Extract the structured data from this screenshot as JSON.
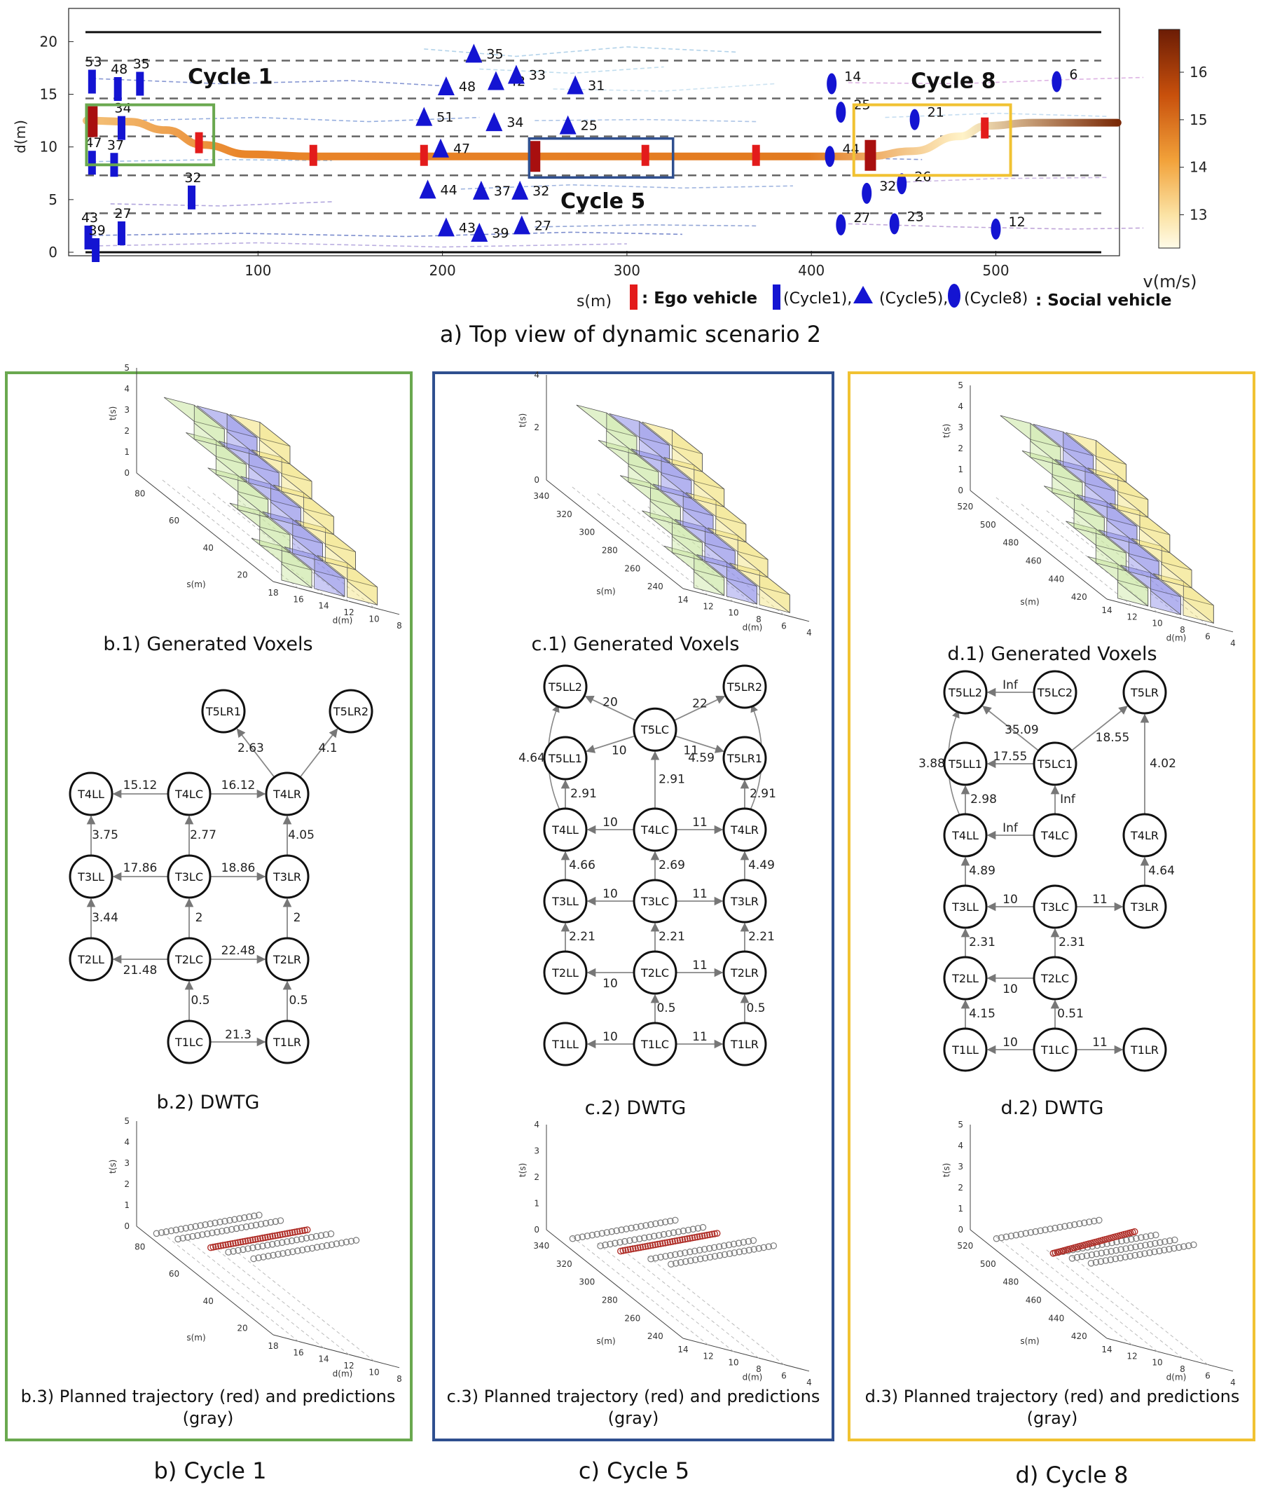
{
  "colors": {
    "cycle1": "#6aa84f",
    "cycle5": "#2f4f8f",
    "cycle8": "#f1c232",
    "ego": "#e31b1b",
    "ego_dark": "#a80f0f",
    "social": "#1414d2",
    "trajectory": "#e07a1f",
    "planned": "#b0302a",
    "prediction": "#7a7a7a",
    "voxel_yellow": "#f2e27a",
    "voxel_blue": "#8a8ae6",
    "voxel_green": "#c9e6a0"
  },
  "top_view": {
    "caption": "a)  Top view of dynamic scenario 2",
    "xlabel": "s(m)",
    "ylabel": "d(m)",
    "x_ticks": [
      "100",
      "200",
      "300",
      "400",
      "500"
    ],
    "y_ticks": [
      "0",
      "5",
      "10",
      "15",
      "20"
    ],
    "colorbar_label": "v(m/s)",
    "colorbar_ticks": [
      "13",
      "14",
      "15",
      "16"
    ],
    "cycle_labels": [
      "Cycle 1",
      "Cycle 5",
      "Cycle 8"
    ],
    "legend_ego": ": Ego vehicle",
    "legend_cycle1": "(Cycle1),",
    "legend_cycle5": "(Cycle5),",
    "legend_cycle8": "(Cycle8)",
    "legend_social": ": Social vehicle",
    "cycle1_ids": [
      {
        "id": "53",
        "s": 10,
        "d": 16.2
      },
      {
        "id": "48",
        "s": 24,
        "d": 15.5
      },
      {
        "id": "35",
        "s": 36,
        "d": 16.0
      },
      {
        "id": "34",
        "s": 26,
        "d": 11.8
      },
      {
        "id": "47",
        "s": 10,
        "d": 8.5
      },
      {
        "id": "37",
        "s": 22,
        "d": 8.3
      },
      {
        "id": "32",
        "s": 64,
        "d": 5.2
      },
      {
        "id": "27",
        "s": 26,
        "d": 1.8
      },
      {
        "id": "43",
        "s": 8,
        "d": 1.4
      },
      {
        "id": "39",
        "s": 12,
        "d": 0.2
      }
    ],
    "cycle5_ids": [
      {
        "id": "35",
        "s": 217,
        "d": 18.8
      },
      {
        "id": "48",
        "s": 202,
        "d": 15.7
      },
      {
        "id": "42",
        "s": 229,
        "d": 16.2
      },
      {
        "id": "33",
        "s": 240,
        "d": 16.8
      },
      {
        "id": "31",
        "s": 272,
        "d": 15.8
      },
      {
        "id": "51",
        "s": 190,
        "d": 12.8
      },
      {
        "id": "34",
        "s": 228,
        "d": 12.3
      },
      {
        "id": "25",
        "s": 268,
        "d": 12.0
      },
      {
        "id": "47",
        "s": 199,
        "d": 9.8
      },
      {
        "id": "44",
        "s": 192,
        "d": 5.9
      },
      {
        "id": "37",
        "s": 221,
        "d": 5.8
      },
      {
        "id": "32",
        "s": 242,
        "d": 5.8
      },
      {
        "id": "43",
        "s": 202,
        "d": 2.3
      },
      {
        "id": "39",
        "s": 220,
        "d": 1.8
      },
      {
        "id": "27",
        "s": 243,
        "d": 2.5
      }
    ],
    "cycle8_ids": [
      {
        "id": "14",
        "s": 411,
        "d": 16.0
      },
      {
        "id": "6",
        "s": 533,
        "d": 16.2
      },
      {
        "id": "25",
        "s": 416,
        "d": 13.3
      },
      {
        "id": "21",
        "s": 456,
        "d": 12.6
      },
      {
        "id": "44",
        "s": 410,
        "d": 9.1
      },
      {
        "id": "26",
        "s": 449,
        "d": 6.5
      },
      {
        "id": "32",
        "s": 430,
        "d": 5.6
      },
      {
        "id": "27",
        "s": 416,
        "d": 2.6
      },
      {
        "id": "23",
        "s": 445,
        "d": 2.7
      },
      {
        "id": "12",
        "s": 500,
        "d": 2.2
      }
    ]
  },
  "voxels": {
    "zlabel": "t(s)",
    "ylabel_s": "s(m)",
    "xlabel_d": "d(m)",
    "b": {
      "caption": "b.1)  Generated Voxels",
      "t_ticks": [
        "0",
        "1",
        "2",
        "3",
        "4",
        "5"
      ],
      "s_ticks": [
        "80",
        "60",
        "40",
        "20"
      ],
      "d_ticks": [
        "18",
        "16",
        "14",
        "12",
        "10",
        "8"
      ]
    },
    "c": {
      "caption": "c.1)  Generated Voxels",
      "t_ticks": [
        "0",
        "2",
        "4"
      ],
      "s_ticks": [
        "340",
        "320",
        "300",
        "280",
        "260",
        "240"
      ],
      "d_ticks": [
        "14",
        "12",
        "10",
        "8",
        "6",
        "4"
      ]
    },
    "d": {
      "caption": "d.1)  Generated Voxels",
      "t_ticks": [
        "0",
        "1",
        "2",
        "3",
        "4",
        "5"
      ],
      "s_ticks": [
        "520",
        "500",
        "480",
        "460",
        "440",
        "420"
      ],
      "d_ticks": [
        "14",
        "12",
        "10",
        "8",
        "6",
        "4"
      ]
    }
  },
  "dwtg": {
    "b": {
      "caption": "b.2)  DWTG",
      "nodes": [
        {
          "id": "T5LR1",
          "c": 1.35,
          "r": 0
        },
        {
          "id": "T5LR2",
          "c": 2.65,
          "r": 0
        },
        {
          "id": "T4LL",
          "c": 0,
          "r": 1
        },
        {
          "id": "T4LC",
          "c": 1,
          "r": 1
        },
        {
          "id": "T4LR",
          "c": 2,
          "r": 1
        },
        {
          "id": "T3LL",
          "c": 0,
          "r": 2
        },
        {
          "id": "T3LC",
          "c": 1,
          "r": 2
        },
        {
          "id": "T3LR",
          "c": 2,
          "r": 2
        },
        {
          "id": "T2LL",
          "c": 0,
          "r": 3
        },
        {
          "id": "T2LC",
          "c": 1,
          "r": 3
        },
        {
          "id": "T2LR",
          "c": 2,
          "r": 3
        },
        {
          "id": "T1LC",
          "c": 1,
          "r": 4
        },
        {
          "id": "T1LR",
          "c": 2,
          "r": 4
        }
      ],
      "edges": [
        {
          "from": "T4LC",
          "to": "T4LL",
          "w": "15.12",
          "lx": 0.5,
          "ly": -12
        },
        {
          "from": "T4LC",
          "to": "T4LR",
          "w": "16.12",
          "lx": 0.5,
          "ly": -12
        },
        {
          "from": "T4LR",
          "to": "T5LR1",
          "w": "2.63",
          "lx": 0.55,
          "ly": 0,
          "ldx": -2
        },
        {
          "from": "T4LR",
          "to": "T5LR2",
          "w": "4.1",
          "lx": 0.55,
          "ly": 0,
          "ldx": 8
        },
        {
          "from": "T3LL",
          "to": "T4LL",
          "w": "3.75",
          "lx": 0.5,
          "ly": 0,
          "ldx": 20
        },
        {
          "from": "T3LC",
          "to": "T4LC",
          "w": "2.77",
          "lx": 0.5,
          "ly": 0,
          "ldx": 20
        },
        {
          "from": "T3LR",
          "to": "T4LR",
          "w": "4.05",
          "lx": 0.5,
          "ly": 0,
          "ldx": 20
        },
        {
          "from": "T3LC",
          "to": "T3LL",
          "w": "17.86",
          "lx": 0.5,
          "ly": -12
        },
        {
          "from": "T3LC",
          "to": "T3LR",
          "w": "18.86",
          "lx": 0.5,
          "ly": -12
        },
        {
          "from": "T2LL",
          "to": "T3LL",
          "w": "3.44",
          "lx": 0.5,
          "ly": 0,
          "ldx": 20
        },
        {
          "from": "T2LC",
          "to": "T3LC",
          "w": "2",
          "lx": 0.5,
          "ly": 0,
          "ldx": 14
        },
        {
          "from": "T2LR",
          "to": "T3LR",
          "w": "2",
          "lx": 0.5,
          "ly": 0,
          "ldx": 14
        },
        {
          "from": "T2LC",
          "to": "T2LL",
          "w": "21.48",
          "lx": 0.5,
          "ly": 16
        },
        {
          "from": "T2LC",
          "to": "T2LR",
          "w": "22.48",
          "lx": 0.5,
          "ly": -12
        },
        {
          "from": "T1LC",
          "to": "T2LC",
          "w": "0.5",
          "lx": 0.5,
          "ly": 0,
          "ldx": 16
        },
        {
          "from": "T1LR",
          "to": "T2LR",
          "w": "0.5",
          "lx": 0.5,
          "ly": 0,
          "ldx": 16
        },
        {
          "from": "T1LC",
          "to": "T1LR",
          "w": "21.3",
          "lx": 0.5,
          "ly": -10
        }
      ]
    },
    "c": {
      "caption": "c.2)  DWTG",
      "nodes": [
        {
          "id": "T5LL2",
          "c": 0,
          "r": 0
        },
        {
          "id": "T5LR2",
          "c": 2,
          "r": 0
        },
        {
          "id": "T5LC",
          "c": 1,
          "r": 0.6
        },
        {
          "id": "T5LL1",
          "c": 0,
          "r": 1
        },
        {
          "id": "T5LR1",
          "c": 2,
          "r": 1
        },
        {
          "id": "T4LL",
          "c": 0,
          "r": 2
        },
        {
          "id": "T4LC",
          "c": 1,
          "r": 2
        },
        {
          "id": "T4LR",
          "c": 2,
          "r": 2
        },
        {
          "id": "T3LL",
          "c": 0,
          "r": 3
        },
        {
          "id": "T3LC",
          "c": 1,
          "r": 3
        },
        {
          "id": "T3LR",
          "c": 2,
          "r": 3
        },
        {
          "id": "T2LL",
          "c": 0,
          "r": 4
        },
        {
          "id": "T2LC",
          "c": 1,
          "r": 4
        },
        {
          "id": "T2LR",
          "c": 2,
          "r": 4
        },
        {
          "id": "T1LL",
          "c": 0,
          "r": 5
        },
        {
          "id": "T1LC",
          "c": 1,
          "r": 5
        },
        {
          "id": "T1LR",
          "c": 2,
          "r": 5
        }
      ],
      "edges": [
        {
          "from": "T5LC",
          "to": "T5LL2",
          "w": "20",
          "lx": 0.5,
          "ly": -8
        },
        {
          "from": "T5LC",
          "to": "T5LR2",
          "w": "22",
          "lx": 0.5,
          "ly": -6
        },
        {
          "from": "T5LC",
          "to": "T5LL1",
          "w": "10",
          "lx": 0.4,
          "ly": 14
        },
        {
          "from": "T5LC",
          "to": "T5LR1",
          "w": "11",
          "lx": 0.4,
          "ly": 14
        },
        {
          "from": "T4LL",
          "to": "T5LL2",
          "w": "4.64",
          "lx": 0.5,
          "ly": 0,
          "ldx": -48,
          "curve": -40
        },
        {
          "from": "T4LR",
          "to": "T5LR2",
          "w": "4.59",
          "lx": 0.5,
          "ly": 0,
          "ldx": -62,
          "curve": 40
        },
        {
          "from": "T4LL",
          "to": "T5LL1",
          "w": "2.91",
          "lx": 0.5,
          "ly": 0,
          "ldx": 26
        },
        {
          "from": "T4LC",
          "to": "T5LC",
          "w": "2.91",
          "lx": 0.5,
          "ly": 0,
          "ldx": 24
        },
        {
          "from": "T4LR",
          "to": "T5LR1",
          "w": "2.91",
          "lx": 0.5,
          "ly": 0,
          "ldx": 26
        },
        {
          "from": "T4LC",
          "to": "T4LL",
          "w": "10",
          "lx": 0.5,
          "ly": -10
        },
        {
          "from": "T4LC",
          "to": "T4LR",
          "w": "11",
          "lx": 0.5,
          "ly": -10
        },
        {
          "from": "T3LL",
          "to": "T4LL",
          "w": "4.66",
          "lx": 0.5,
          "ly": 0,
          "ldx": 24
        },
        {
          "from": "T3LC",
          "to": "T4LC",
          "w": "2.69",
          "lx": 0.5,
          "ly": 0,
          "ldx": 24
        },
        {
          "from": "T3LR",
          "to": "T4LR",
          "w": "4.49",
          "lx": 0.5,
          "ly": 0,
          "ldx": 24
        },
        {
          "from": "T3LC",
          "to": "T3LL",
          "w": "10",
          "lx": 0.5,
          "ly": -10
        },
        {
          "from": "T3LC",
          "to": "T3LR",
          "w": "11",
          "lx": 0.5,
          "ly": -10
        },
        {
          "from": "T2LL",
          "to": "T3LL",
          "w": "2.21",
          "lx": 0.5,
          "ly": 0,
          "ldx": 24
        },
        {
          "from": "T2LC",
          "to": "T3LC",
          "w": "2.21",
          "lx": 0.5,
          "ly": 0,
          "ldx": 24
        },
        {
          "from": "T2LR",
          "to": "T3LR",
          "w": "2.21",
          "lx": 0.5,
          "ly": 0,
          "ldx": 24
        },
        {
          "from": "T2LC",
          "to": "T2LL",
          "w": "10",
          "lx": 0.5,
          "ly": 16
        },
        {
          "from": "T2LC",
          "to": "T2LR",
          "w": "11",
          "lx": 0.5,
          "ly": -10
        },
        {
          "from": "T1LC",
          "to": "T2LC",
          "w": "0.5",
          "lx": 0.5,
          "ly": 0,
          "ldx": 16
        },
        {
          "from": "T1LR",
          "to": "T2LR",
          "w": "0.5",
          "lx": 0.5,
          "ly": 0,
          "ldx": 16
        },
        {
          "from": "T1LC",
          "to": "T1LL",
          "w": "10",
          "lx": 0.5,
          "ly": -10
        },
        {
          "from": "T1LC",
          "to": "T1LR",
          "w": "11",
          "lx": 0.5,
          "ly": -10
        }
      ]
    },
    "d": {
      "caption": "d.2)  DWTG",
      "nodes": [
        {
          "id": "T5LL2",
          "c": 0,
          "r": 0
        },
        {
          "id": "T5LC2",
          "c": 1,
          "r": 0
        },
        {
          "id": "T5LR",
          "c": 2,
          "r": 0
        },
        {
          "id": "T5LL1",
          "c": 0,
          "r": 1
        },
        {
          "id": "T5LC1",
          "c": 1,
          "r": 1
        },
        {
          "id": "T4LL",
          "c": 0,
          "r": 2
        },
        {
          "id": "T4LC",
          "c": 1,
          "r": 2
        },
        {
          "id": "T4LR",
          "c": 2,
          "r": 2
        },
        {
          "id": "T3LL",
          "c": 0,
          "r": 3
        },
        {
          "id": "T3LC",
          "c": 1,
          "r": 3
        },
        {
          "id": "T3LR",
          "c": 2,
          "r": 3
        },
        {
          "id": "T2LL",
          "c": 0,
          "r": 4
        },
        {
          "id": "T2LC",
          "c": 1,
          "r": 4
        },
        {
          "id": "T1LL",
          "c": 0,
          "r": 5
        },
        {
          "id": "T1LC",
          "c": 1,
          "r": 5
        },
        {
          "id": "T1LR",
          "c": 2,
          "r": 5
        }
      ],
      "edges": [
        {
          "from": "T5LC2",
          "to": "T5LL2",
          "w": "Inf",
          "lx": 0.5,
          "ly": -10
        },
        {
          "from": "T5LC1",
          "to": "T5LL2",
          "w": "35.09",
          "lx": 0.45,
          "ly": -2,
          "ldx": 10
        },
        {
          "from": "T5LC1",
          "to": "T5LL1",
          "w": "17.55",
          "lx": 0.5,
          "ly": -10
        },
        {
          "from": "T5LC1",
          "to": "T5LR",
          "w": "18.55",
          "lx": 0.5,
          "ly": 14,
          "ldx": 18
        },
        {
          "from": "T4LL",
          "to": "T5LL2",
          "w": "3.88",
          "lx": 0.5,
          "ly": 0,
          "ldx": -48,
          "curve": -40
        },
        {
          "from": "T4LL",
          "to": "T5LL1",
          "w": "2.98",
          "lx": 0.5,
          "ly": 0,
          "ldx": 26
        },
        {
          "from": "T4LC",
          "to": "T5LC1",
          "w": "Inf",
          "lx": 0.5,
          "ly": 0,
          "ldx": 18
        },
        {
          "from": "T4LR",
          "to": "T5LR",
          "w": "4.02",
          "lx": 0.5,
          "ly": 0,
          "ldx": 26
        },
        {
          "from": "T4LC",
          "to": "T4LL",
          "w": "Inf",
          "lx": 0.5,
          "ly": -10
        },
        {
          "from": "T3LL",
          "to": "T4LL",
          "w": "4.89",
          "lx": 0.5,
          "ly": 0,
          "ldx": 24
        },
        {
          "from": "T3LR",
          "to": "T4LR",
          "w": "4.64",
          "lx": 0.5,
          "ly": 0,
          "ldx": 24
        },
        {
          "from": "T3LC",
          "to": "T3LL",
          "w": "10",
          "lx": 0.5,
          "ly": -10
        },
        {
          "from": "T3LC",
          "to": "T3LR",
          "w": "11",
          "lx": 0.5,
          "ly": -10
        },
        {
          "from": "T2LL",
          "to": "T3LL",
          "w": "2.31",
          "lx": 0.5,
          "ly": 0,
          "ldx": 24
        },
        {
          "from": "T2LC",
          "to": "T3LC",
          "w": "2.31",
          "lx": 0.5,
          "ly": 0,
          "ldx": 24
        },
        {
          "from": "T2LC",
          "to": "T2LL",
          "w": "10",
          "lx": 0.5,
          "ly": 16
        },
        {
          "from": "T1LL",
          "to": "T2LL",
          "w": "4.15",
          "lx": 0.5,
          "ly": 0,
          "ldx": 24
        },
        {
          "from": "T1LC",
          "to": "T2LC",
          "w": "0.51",
          "lx": 0.5,
          "ly": 0,
          "ldx": 22
        },
        {
          "from": "T1LC",
          "to": "T1LL",
          "w": "10",
          "lx": 0.5,
          "ly": -10
        },
        {
          "from": "T1LC",
          "to": "T1LR",
          "w": "11",
          "lx": 0.5,
          "ly": -10
        }
      ]
    }
  },
  "trajectories": {
    "b": {
      "caption_line1": "b.3)  Planned trajectory (red) and predictions",
      "caption_line2": "(gray)",
      "t_ticks": [
        "0",
        "1",
        "2",
        "3",
        "4",
        "5"
      ],
      "s_ticks": [
        "80",
        "60",
        "40",
        "20"
      ],
      "d_ticks": [
        "18",
        "16",
        "14",
        "12",
        "10",
        "8"
      ]
    },
    "c": {
      "caption_line1": "c.3)  Planned trajectory (red) and predictions",
      "caption_line2": "(gray)",
      "t_ticks": [
        "0",
        "1",
        "2",
        "3",
        "4"
      ],
      "s_ticks": [
        "340",
        "320",
        "300",
        "280",
        "260",
        "240"
      ],
      "d_ticks": [
        "14",
        "12",
        "10",
        "8",
        "6",
        "4"
      ]
    },
    "d": {
      "caption_line1": "d.3)  Planned trajectory (red) and predictions",
      "caption_line2": "(gray)",
      "t_ticks": [
        "0",
        "1",
        "2",
        "3",
        "4",
        "5"
      ],
      "s_ticks": [
        "520",
        "500",
        "480",
        "460",
        "440",
        "420"
      ],
      "d_ticks": [
        "14",
        "12",
        "10",
        "8",
        "6",
        "4"
      ]
    }
  },
  "panel_captions": {
    "b": "b)  Cycle 1",
    "c": "c)  Cycle 5",
    "d": "d)  Cycle 8"
  }
}
